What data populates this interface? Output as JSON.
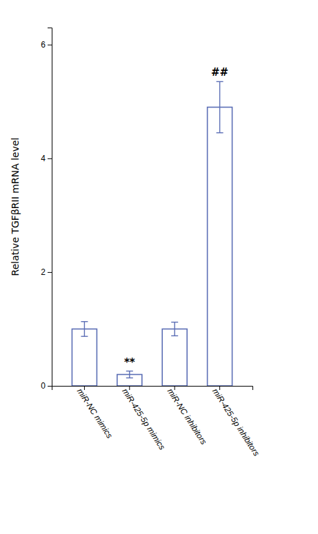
{
  "chart_data": {
    "type": "bar",
    "categories": [
      "miR-NC mimics",
      "miR-425-5p mimics",
      "miR-NC inhibitors",
      "miR-425-5p inhibitors"
    ],
    "values": [
      1.0,
      0.2,
      1.0,
      4.9
    ],
    "errors": [
      0.13,
      0.06,
      0.12,
      0.45
    ],
    "annotations": [
      null,
      "**",
      null,
      "##"
    ],
    "y_label": "Relative TGFβRII mRNA level",
    "color": "#5b6eb5",
    "ylim": [
      0,
      6.3
    ],
    "yticks": [
      0,
      2,
      4,
      6
    ],
    "grid": false
  }
}
